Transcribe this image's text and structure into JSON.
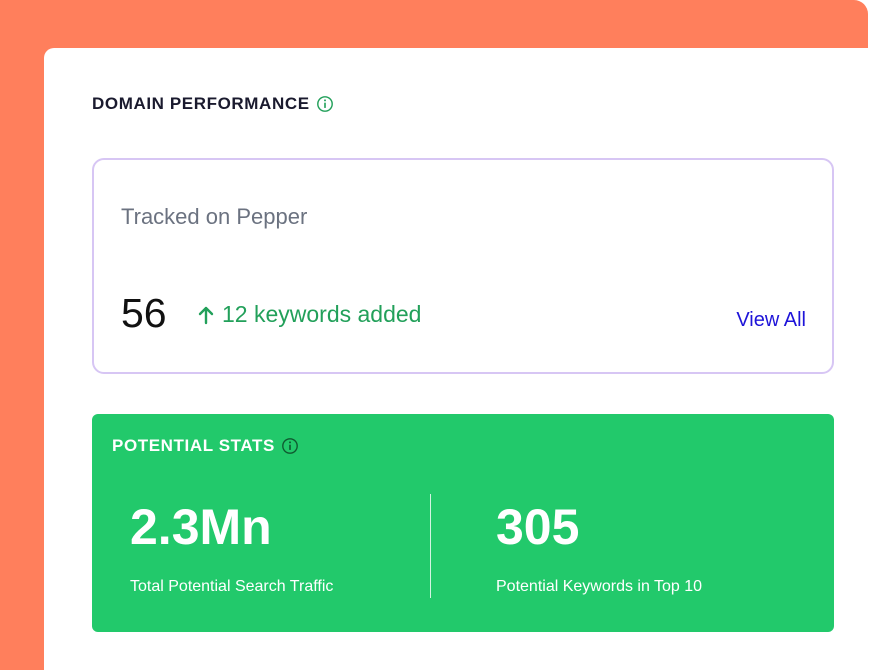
{
  "domain_performance": {
    "title": "DOMAIN PERFORMANCE",
    "info_icon": "info-icon",
    "tracked": {
      "label": "Tracked on Pepper",
      "count": "56",
      "delta_text": "12 keywords added",
      "delta_icon": "arrow-up-icon",
      "view_all_label": "View All"
    }
  },
  "potential_stats": {
    "title": "POTENTIAL STATS",
    "info_icon": "info-icon",
    "stats": [
      {
        "value": "2.3Mn",
        "label": "Total Potential Search Traffic"
      },
      {
        "value": "305",
        "label": "Potential Keywords in Top 10"
      }
    ]
  },
  "colors": {
    "backdrop": "#FF7F5C",
    "stats_background": "#22C96B",
    "delta_green": "#22A05A",
    "link_blue": "#1E14D9",
    "tracked_border": "#D7C6F4"
  }
}
